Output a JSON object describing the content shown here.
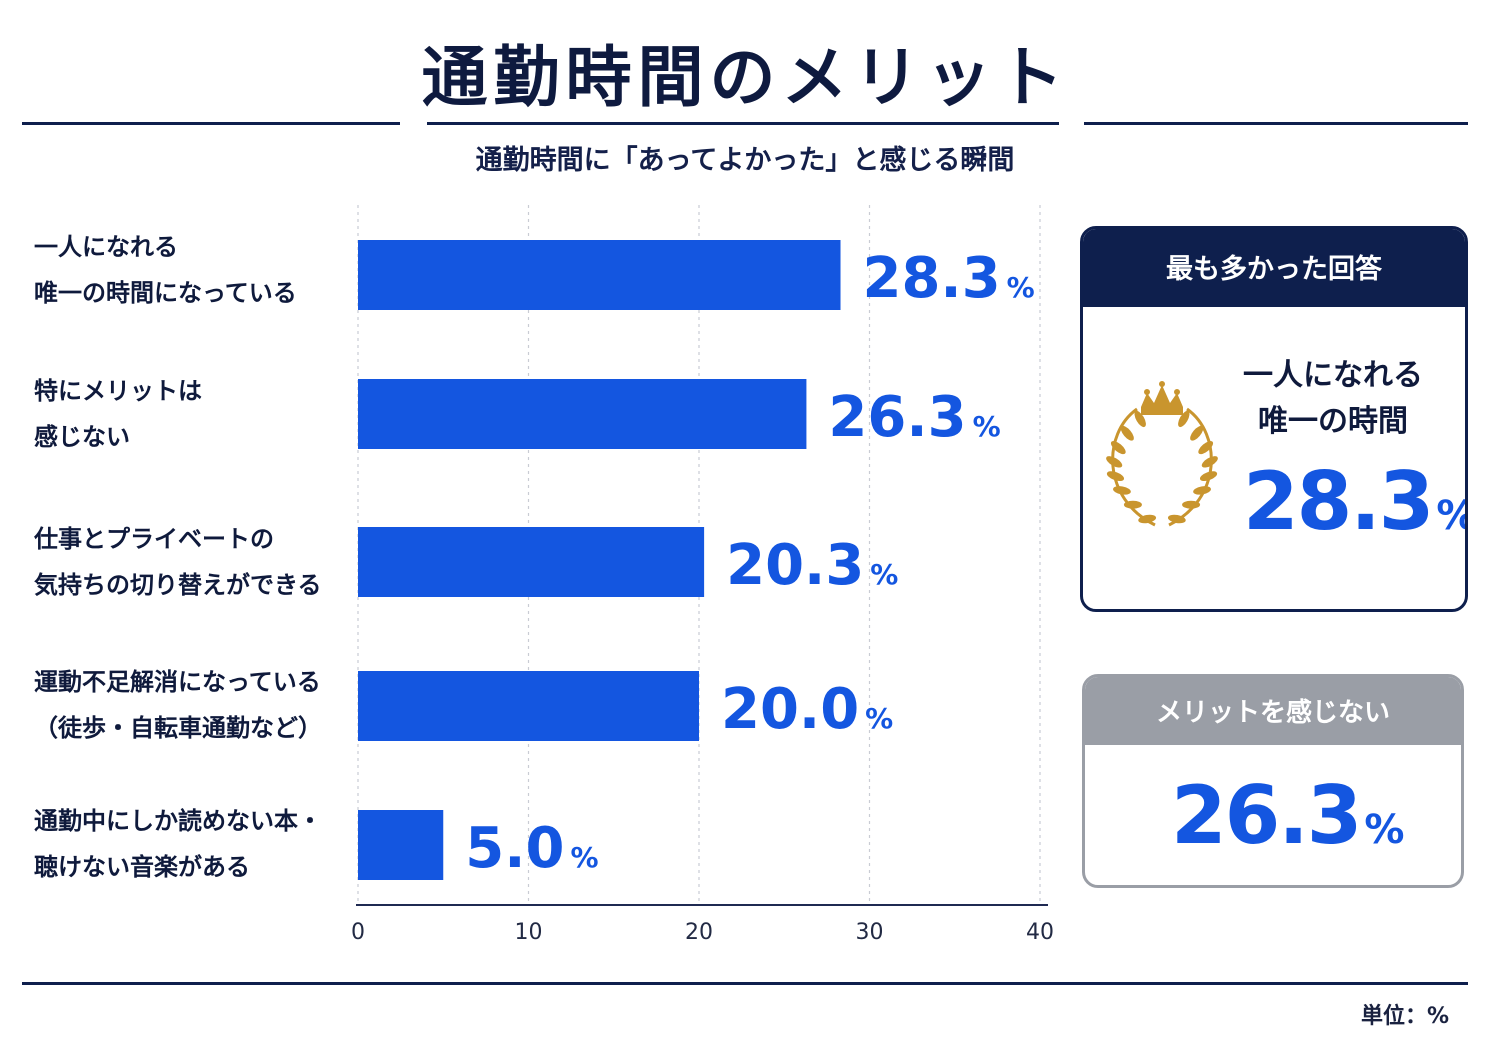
{
  "title": "通勤時間のメリット",
  "subtitle": "通勤時間に「あってよかった」と感じる瞬間",
  "unit_label": "単位：%",
  "colors": {
    "bar": "#1456e0",
    "navy": "#0e1f4d",
    "gray": "#9a9ea6"
  },
  "chart_data": {
    "type": "bar",
    "orientation": "horizontal",
    "categories": [
      [
        "一人になれる",
        "唯一の時間になっている"
      ],
      [
        "特にメリットは",
        "感じない"
      ],
      [
        "仕事とプライベートの",
        "気持ちの切り替えができる"
      ],
      [
        "運動不足解消になっている",
        "（徒歩・自転車通勤など）"
      ],
      [
        "通勤中にしか読めない本・",
        "聴けない音楽がある"
      ]
    ],
    "values": [
      28.3,
      26.3,
      20.3,
      20.0,
      5.0
    ],
    "value_labels": [
      "28.3",
      "26.3",
      "20.3",
      "20.0",
      "5.0"
    ],
    "value_suffix": "%",
    "xlim": [
      0,
      40
    ],
    "xticks": [
      "0",
      "10",
      "20",
      "30",
      "40"
    ],
    "grid": true
  },
  "top_card": {
    "header": "最も多かった回答",
    "answer_lines": [
      "一人になれる",
      "唯一の時間"
    ],
    "value": "28.3",
    "suffix": "%",
    "icon": "crown-laurel-icon"
  },
  "bottom_card": {
    "header": "メリットを感じない",
    "value": "26.3",
    "suffix": "%"
  }
}
